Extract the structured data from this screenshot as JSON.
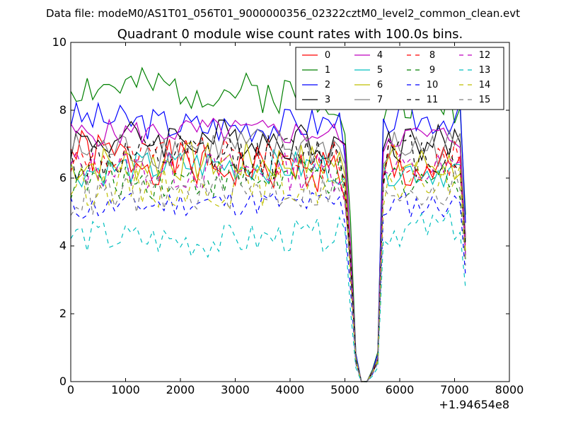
{
  "suptitle": "Data file: modeM0/AS1T01_056T01_9000000356_02322cztM0_level2_common_clean.evt",
  "chart_data": {
    "type": "line",
    "title": "Quadrant 0 module wise count rates with 100.0s bins.",
    "xlabel": "",
    "ylabel": "",
    "xlim": [
      0,
      8000
    ],
    "ylim": [
      0,
      10
    ],
    "x_offset_label": "+1.94654e8",
    "xticks": [
      0,
      1000,
      2000,
      3000,
      4000,
      5000,
      6000,
      7000,
      8000
    ],
    "xtick_labels": [
      "0",
      "1000",
      "2000",
      "3000",
      "4000",
      "5000",
      "6000",
      "7000",
      "8000"
    ],
    "yticks": [
      0,
      2,
      4,
      6,
      8,
      10
    ],
    "ytick_labels": [
      "0",
      "2",
      "4",
      "6",
      "8",
      "10"
    ],
    "grid": false,
    "legend_position": "top-right",
    "series": [
      {
        "name": "0",
        "color": "#ff0000",
        "dash": "solid",
        "base": [
          6.8,
          6.3,
          6.2
        ],
        "amp": 0.35,
        "seed": 1
      },
      {
        "name": "1",
        "color": "#008000",
        "dash": "solid",
        "base": [
          8.7,
          8.6,
          8.2
        ],
        "amp": 0.3,
        "seed": 2
      },
      {
        "name": "2",
        "color": "#0000ff",
        "dash": "solid",
        "base": [
          7.8,
          7.5,
          7.8
        ],
        "amp": 0.25,
        "seed": 3
      },
      {
        "name": "3",
        "color": "#000000",
        "dash": "solid",
        "base": [
          7.1,
          7.2,
          7.0
        ],
        "amp": 0.3,
        "seed": 4
      },
      {
        "name": "4",
        "color": "#bf00bf",
        "dash": "solid",
        "base": [
          7.3,
          7.4,
          7.2
        ],
        "amp": 0.2,
        "seed": 5
      },
      {
        "name": "5",
        "color": "#00bfbf",
        "dash": "solid",
        "base": [
          6.2,
          6.4,
          6.2
        ],
        "amp": 0.25,
        "seed": 6
      },
      {
        "name": "6",
        "color": "#bfbf00",
        "dash": "solid",
        "base": [
          6.4,
          6.5,
          6.4
        ],
        "amp": 0.3,
        "seed": 7
      },
      {
        "name": "7",
        "color": "#808080",
        "dash": "solid",
        "base": [
          6.8,
          6.9,
          6.9
        ],
        "amp": 0.3,
        "seed": 8
      },
      {
        "name": "8",
        "color": "#ff0000",
        "dash": "dashed",
        "base": [
          6.5,
          6.6,
          6.5
        ],
        "amp": 0.3,
        "seed": 9
      },
      {
        "name": "9",
        "color": "#008000",
        "dash": "dashed",
        "base": [
          5.9,
          6.0,
          6.0
        ],
        "amp": 0.3,
        "seed": 10
      },
      {
        "name": "10",
        "color": "#0000ff",
        "dash": "dashed",
        "base": [
          5.1,
          5.3,
          5.2
        ],
        "amp": 0.2,
        "seed": 11
      },
      {
        "name": "11",
        "color": "#000000",
        "dash": "dashed",
        "base": [
          6.5,
          6.6,
          6.7
        ],
        "amp": 0.35,
        "seed": 12
      },
      {
        "name": "12",
        "color": "#bf00bf",
        "dash": "dashed",
        "base": [
          6.3,
          6.2,
          6.2
        ],
        "amp": 0.3,
        "seed": 13
      },
      {
        "name": "13",
        "color": "#00bfbf",
        "dash": "dashed",
        "base": [
          4.3,
          4.1,
          4.6
        ],
        "amp": 0.25,
        "seed": 14
      },
      {
        "name": "14",
        "color": "#bfbf00",
        "dash": "dashed",
        "base": [
          5.8,
          5.7,
          5.9
        ],
        "amp": 0.3,
        "seed": 15
      },
      {
        "name": "15",
        "color": "#808080",
        "dash": "dashed",
        "base": [
          5.4,
          5.6,
          5.7
        ],
        "amp": 0.3,
        "seed": 16
      }
    ]
  }
}
